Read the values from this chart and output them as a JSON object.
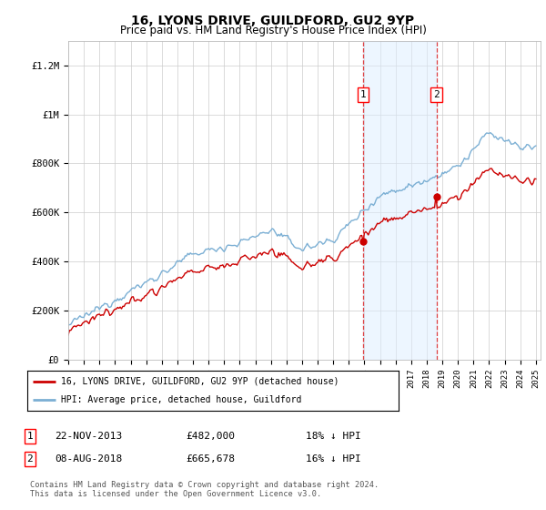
{
  "title": "16, LYONS DRIVE, GUILDFORD, GU2 9YP",
  "subtitle": "Price paid vs. HM Land Registry's House Price Index (HPI)",
  "ylim": [
    0,
    1300000
  ],
  "yticks": [
    0,
    200000,
    400000,
    600000,
    800000,
    1000000,
    1200000
  ],
  "ytick_labels": [
    "£0",
    "£200K",
    "£400K",
    "£600K",
    "£800K",
    "£1M",
    "£1.2M"
  ],
  "hpi_color": "#7bafd4",
  "price_color": "#cc0000",
  "sale1_date": "22-NOV-2013",
  "sale1_price": "£482,000",
  "sale1_hpi_txt": "18% ↓ HPI",
  "sale1_value": 482000,
  "sale1_year": 2013.9,
  "sale2_date": "08-AUG-2018",
  "sale2_price": "£665,678",
  "sale2_hpi_txt": "16% ↓ HPI",
  "sale2_value": 665678,
  "sale2_year": 2018.62,
  "legend_label1": "16, LYONS DRIVE, GUILDFORD, GU2 9YP (detached house)",
  "legend_label2": "HPI: Average price, detached house, Guildford",
  "footer": "Contains HM Land Registry data © Crown copyright and database right 2024.\nThis data is licensed under the Open Government Licence v3.0.",
  "background_color": "#ffffff",
  "grid_color": "#cccccc",
  "shade_color": "#ddeeff",
  "shade_alpha": 0.5
}
